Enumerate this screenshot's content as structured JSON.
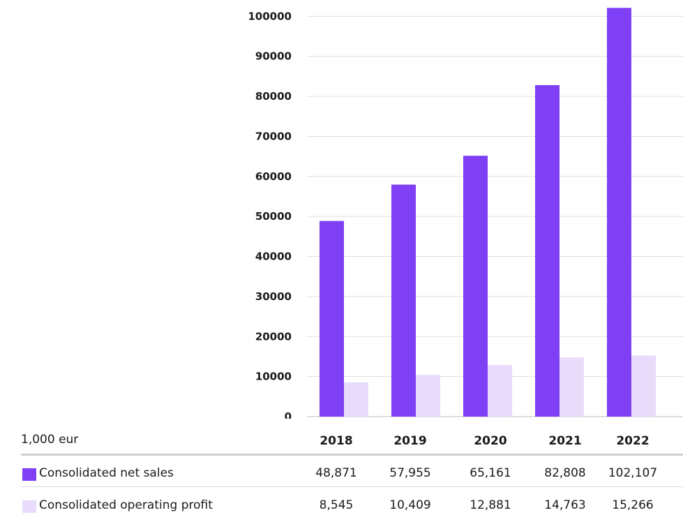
{
  "chart_data": {
    "type": "bar",
    "categories": [
      "2018",
      "2019",
      "2020",
      "2021",
      "2022"
    ],
    "series": [
      {
        "name": "Consolidated net sales",
        "values": [
          48871,
          57955,
          65161,
          82808,
          102107
        ],
        "display": [
          "48,871",
          "57,955",
          "65,161",
          "82,808",
          "102,107"
        ],
        "color": "#7f3ff5"
      },
      {
        "name": "Consolidated operating profit",
        "values": [
          8545,
          10409,
          12881,
          14763,
          15266
        ],
        "display": [
          "8,545",
          "10,409",
          "12,881",
          "14,763",
          "15,266"
        ],
        "color": "#e8dcfb"
      }
    ],
    "yticks": [
      "0",
      "10000",
      "20000",
      "30000",
      "40000",
      "50000",
      "60000",
      "70000",
      "80000",
      "90000",
      "100000"
    ],
    "ylim": [
      0,
      102500
    ],
    "grid": true,
    "unit_label": "1,000 eur",
    "legend": "table-below"
  }
}
